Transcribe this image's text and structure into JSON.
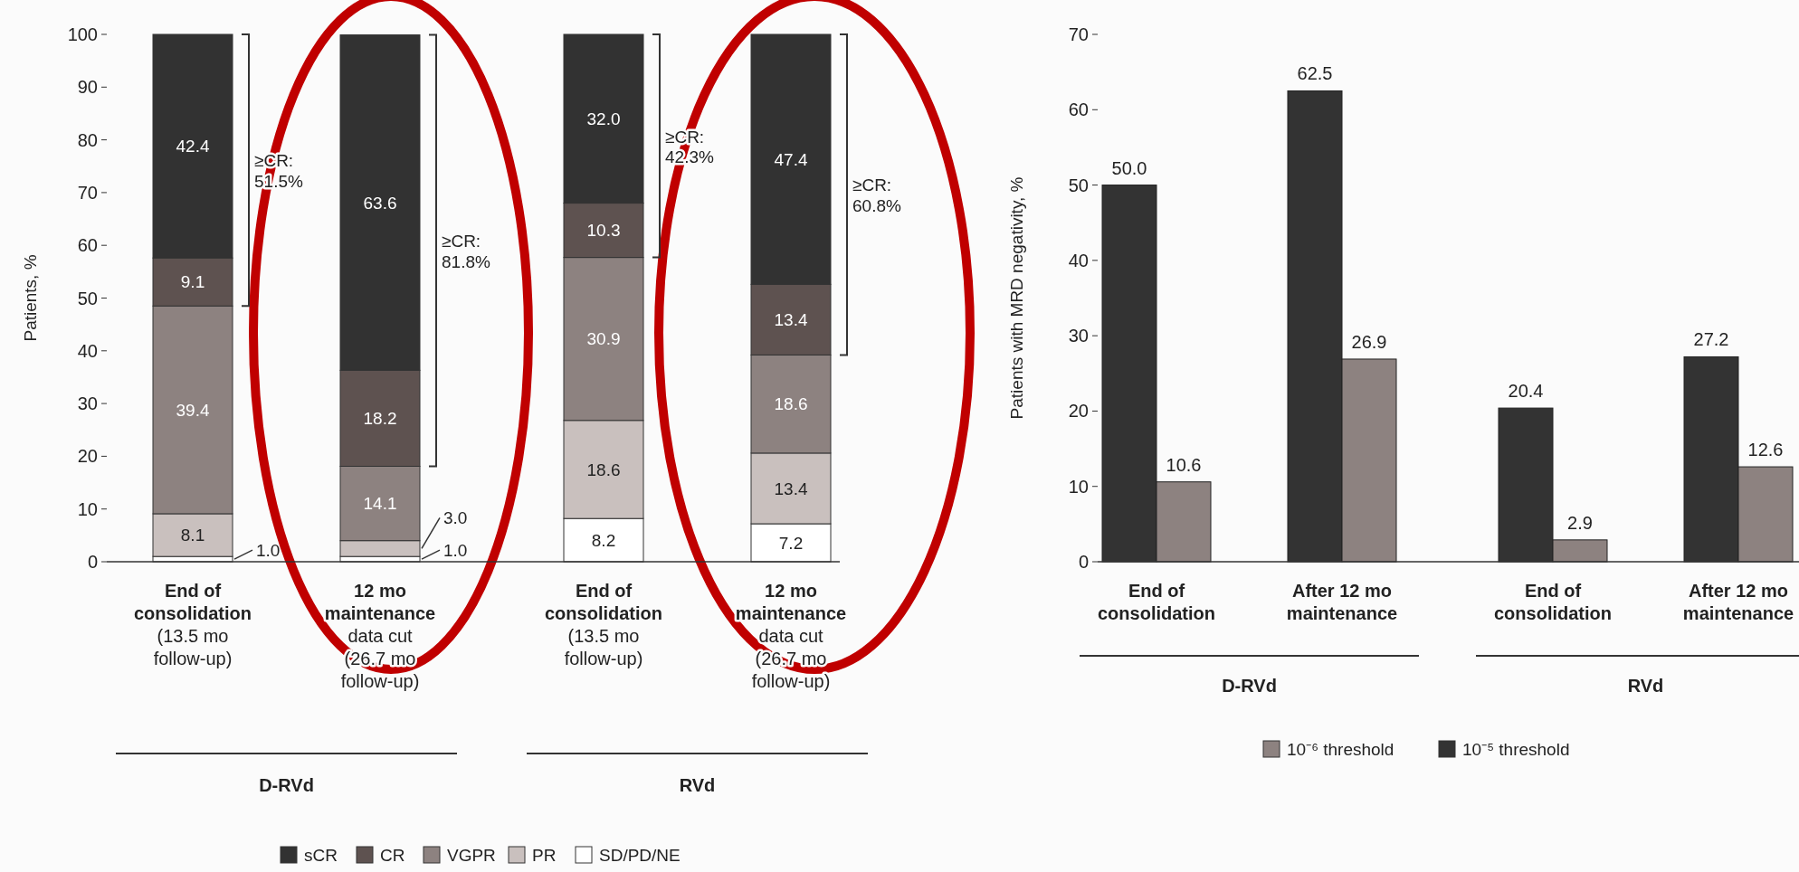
{
  "chart_data": [
    {
      "type": "bar",
      "stacked": true,
      "ylabel": "Patients, %",
      "ylim": [
        0,
        100
      ],
      "yticks": [
        0,
        10,
        20,
        30,
        40,
        50,
        60,
        70,
        80,
        90,
        100
      ],
      "legend": "bottom",
      "data_labels": true,
      "categories": [
        "End of\nconsolidation\n(13.5 mo\nfollow-up)",
        "12 mo\nmaintenance\ndata cut\n(26.7 mo\nfollow-up)",
        "End of\nconsolidation\n(13.5 mo\nfollow-up)",
        "12 mo\nmaintenance\ndata cut\n(26.7 mo\nfollow-up)"
      ],
      "series": [
        {
          "name": "SD/PD/NE",
          "color": "#ffffff",
          "values": [
            1.0,
            1.0,
            8.2,
            7.2
          ],
          "value_labels": [
            "1.0",
            "1.0",
            "8.2",
            "7.2"
          ]
        },
        {
          "name": "PR",
          "color": "#c9c0be",
          "values": [
            8.1,
            3.0,
            18.6,
            13.4
          ],
          "value_labels": [
            "8.1",
            "3.0",
            "18.6",
            "13.4"
          ]
        },
        {
          "name": "VGPR",
          "color": "#8d8280",
          "values": [
            39.4,
            14.1,
            30.9,
            18.6
          ],
          "value_labels": [
            "39.4",
            "14.1",
            "30.9",
            "18.6"
          ]
        },
        {
          "name": "CR",
          "color": "#5e5250",
          "values": [
            9.1,
            18.2,
            10.3,
            13.4
          ],
          "value_labels": [
            "9.1",
            "18.2",
            "10.3",
            "13.4"
          ]
        },
        {
          "name": "sCR",
          "color": "#323232",
          "values": [
            42.4,
            63.6,
            32.0,
            47.4
          ],
          "value_labels": [
            "42.4",
            "63.6",
            "32.0",
            "47.4"
          ]
        }
      ],
      "annotations": [
        "D-RVd",
        "RVd",
        "≥CR:\n51.5%",
        "≥CR:\n81.8%",
        "≥CR:\n42.3%",
        "≥CR:\n60.8%"
      ]
    },
    {
      "type": "bar",
      "ylabel": "Patients with MRD negativity, %",
      "ylim": [
        0,
        70
      ],
      "yticks": [
        0,
        10,
        20,
        30,
        40,
        50,
        60,
        70
      ],
      "legend": "bottom",
      "data_labels": true,
      "categories": [
        "End of\nconsolidation",
        "After 12 mo\nmaintenance",
        "End of\nconsolidation",
        "After 12 mo\nmaintenance"
      ],
      "series": [
        {
          "name": "10⁻⁵ threshold",
          "color": "#333333",
          "values": [
            50.0,
            62.5,
            20.4,
            27.2
          ],
          "value_labels": [
            "50.0",
            "62.5",
            "20.4",
            "27.2"
          ]
        },
        {
          "name": "10⁻⁶ threshold",
          "color": "#8d8280",
          "values": [
            10.6,
            26.9,
            2.9,
            12.6
          ],
          "value_labels": [
            "10.6",
            "26.9",
            "2.9",
            "12.6"
          ]
        }
      ],
      "annotations": [
        "D-RVd",
        "RVd"
      ]
    }
  ]
}
